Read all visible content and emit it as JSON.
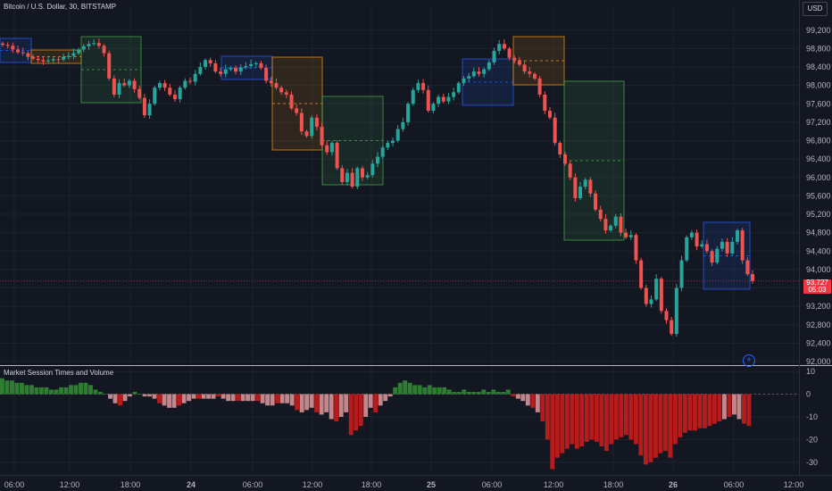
{
  "header": {
    "symbol_title": "Bitcoin / U.S. Dollar, 30, BITSTAMP",
    "currency_button": "USD"
  },
  "indicator": {
    "title": "Market Session Times and Volume"
  },
  "price_badge": {
    "price": "93,727",
    "countdown": "05:03",
    "color": "#f23645"
  },
  "colors": {
    "background": "#131722",
    "up": "#26a69a",
    "down": "#ef5350",
    "vol_up_strong": "#2e7d32",
    "vol_down_strong": "#b71c1c",
    "vol_down_weak": "#c4868a",
    "session_blue": "#2962ff",
    "session_orange": "#ff9800",
    "session_green": "#4caf50"
  },
  "chart_data": [
    {
      "type": "candlestick",
      "title": "Bitcoin / U.S. Dollar, 30, BITSTAMP",
      "yticks": [
        92000,
        92400,
        92800,
        93200,
        93600,
        94000,
        94400,
        94800,
        95200,
        95600,
        96000,
        96400,
        96800,
        97200,
        97600,
        98000,
        98400,
        98800,
        99200
      ],
      "ytick_labels": [
        "92,000",
        "92,400",
        "92,800",
        "93,200",
        "93,600",
        "94,000",
        "94,400",
        "94,800",
        "95,200",
        "95,600",
        "96,000",
        "96,400",
        "96,800",
        "97,200",
        "97,600",
        "98,000",
        "98,400",
        "98,800",
        "99,200"
      ],
      "xticks": [
        "06:00",
        "12:00",
        "18:00",
        "24",
        "06:00",
        "12:00",
        "18:00",
        "25",
        "06:00",
        "12:00",
        "18:00",
        "26",
        "06:00",
        "12:00"
      ],
      "ylim": [
        92000,
        99700
      ],
      "close_path": [
        98880,
        98860,
        98780,
        98720,
        98700,
        98620,
        98580,
        98550,
        98520,
        98540,
        98570,
        98560,
        98620,
        98640,
        98700,
        98780,
        98850,
        98900,
        98920,
        98860,
        98700,
        98150,
        97800,
        98050,
        98000,
        98100,
        97920,
        97730,
        97350,
        97600,
        97950,
        98050,
        97950,
        97800,
        97700,
        97950,
        98100,
        98080,
        98250,
        98400,
        98550,
        98480,
        98300,
        98250,
        98350,
        98380,
        98300,
        98390,
        98420,
        98460,
        98480,
        98380,
        98100,
        98050,
        97950,
        97850,
        97800,
        97500,
        97400,
        97000,
        96900,
        97300,
        97100,
        96700,
        96550,
        96750,
        96200,
        95900,
        96100,
        95800,
        96200,
        96000,
        96050,
        96300,
        96450,
        96650,
        96750,
        96800,
        97050,
        97200,
        97600,
        97900,
        98050,
        97900,
        97450,
        97600,
        97750,
        97650,
        97750,
        97850,
        98050,
        98150,
        98200,
        98300,
        98250,
        98350,
        98500,
        98750,
        98900,
        98800,
        98600,
        98550,
        98450,
        98300,
        98250,
        98150,
        97800,
        97450,
        97300,
        96750,
        96500,
        96300,
        96000,
        95550,
        95800,
        95950,
        95650,
        95300,
        95100,
        94850,
        94950,
        95150,
        94800,
        94700,
        94750,
        94200,
        93600,
        93250,
        93350,
        93800,
        93100,
        92900,
        92600,
        93600,
        94200,
        94700,
        94800,
        94500,
        94550,
        94400,
        94150,
        94450,
        94600,
        94350,
        94600,
        94850,
        94200,
        93900,
        93750
      ]
    },
    {
      "type": "bar",
      "title": "Market Session Times and Volume",
      "yticks": [
        10,
        0,
        -10,
        -20,
        -30
      ],
      "ylim": [
        -34,
        12
      ],
      "values": [
        7,
        6,
        6,
        5,
        5,
        4,
        4,
        3,
        3,
        3,
        2,
        2,
        3,
        3,
        4,
        4,
        5,
        5,
        4,
        2,
        1,
        0,
        -2,
        -4,
        -5,
        -3,
        -1,
        1,
        0,
        -1,
        -1,
        -2,
        -4,
        -5,
        -6,
        -6,
        -5,
        -4,
        -3,
        -2,
        -2,
        -2,
        -2,
        -2,
        -1,
        -2,
        -3,
        -3,
        -3,
        -3,
        -3,
        -3,
        -3,
        -4,
        -5,
        -5,
        -4,
        -4,
        -4,
        -5,
        -7,
        -8,
        -7,
        -6,
        -8,
        -9,
        -8,
        -11,
        -12,
        -10,
        -8,
        -18,
        -16,
        -14,
        -10,
        -6,
        -8,
        -5,
        -3,
        -1,
        3,
        5,
        6,
        5,
        4,
        4,
        3,
        4,
        3,
        3,
        3,
        2,
        1,
        1,
        2,
        1,
        1,
        1,
        2,
        1,
        2,
        1,
        1,
        2,
        -1,
        -2,
        -3,
        -5,
        -6,
        -8,
        -12,
        -20,
        -33,
        -28,
        -26,
        -24,
        -22,
        -24,
        -23,
        -21,
        -20,
        -21,
        -23,
        -25,
        -22,
        -20,
        -19,
        -18,
        -20,
        -22,
        -27,
        -31,
        -30,
        -28,
        -26,
        -25,
        -28,
        -22,
        -19,
        -17,
        -16,
        -16,
        -15,
        -15,
        -14,
        -13,
        -12,
        -11,
        -10,
        -9,
        -11,
        -13,
        -14
      ],
      "legend_text": ""
    }
  ]
}
